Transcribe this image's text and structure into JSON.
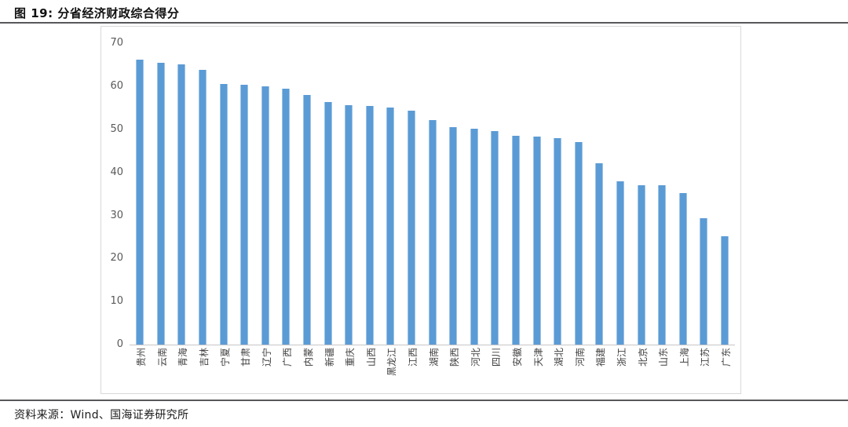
{
  "header": {
    "title": "图 19: 分省经济财政综合得分"
  },
  "footer": {
    "source": "资料来源：Wind、国海证券研究所"
  },
  "chart_data": {
    "type": "bar",
    "title": "分省经济财政综合得分",
    "categories": [
      "贵州",
      "云南",
      "青海",
      "吉林",
      "宁夏",
      "甘肃",
      "辽宁",
      "广西",
      "内蒙",
      "新疆",
      "重庆",
      "山西",
      "黑龙江",
      "江西",
      "湖南",
      "陕西",
      "河北",
      "四川",
      "安徽",
      "天津",
      "湖北",
      "河南",
      "福建",
      "浙江",
      "北京",
      "山东",
      "上海",
      "江苏",
      "广东"
    ],
    "values": [
      66.3,
      65.6,
      65.1,
      63.9,
      60.6,
      60.4,
      60.0,
      59.4,
      58.0,
      56.4,
      55.7,
      55.4,
      55.1,
      54.4,
      52.1,
      50.6,
      50.1,
      49.6,
      48.6,
      48.4,
      48.0,
      47.0,
      42.2,
      37.9,
      37.1,
      37.0,
      35.2,
      29.4,
      25.2
    ],
    "xlabel": "",
    "ylabel": "",
    "ylim": [
      0,
      70
    ],
    "yticks": [
      0,
      10,
      20,
      30,
      40,
      50,
      60,
      70
    ],
    "grid": false,
    "legend_position": "none",
    "bar_color": "#5B9BD5",
    "x_label_rotation": -90
  },
  "style": {
    "accent_blue": "#5B9BD5",
    "axis_text_color": "#595959",
    "divider_color": "#58585a",
    "chart_border_color": "#d9d9d9"
  }
}
